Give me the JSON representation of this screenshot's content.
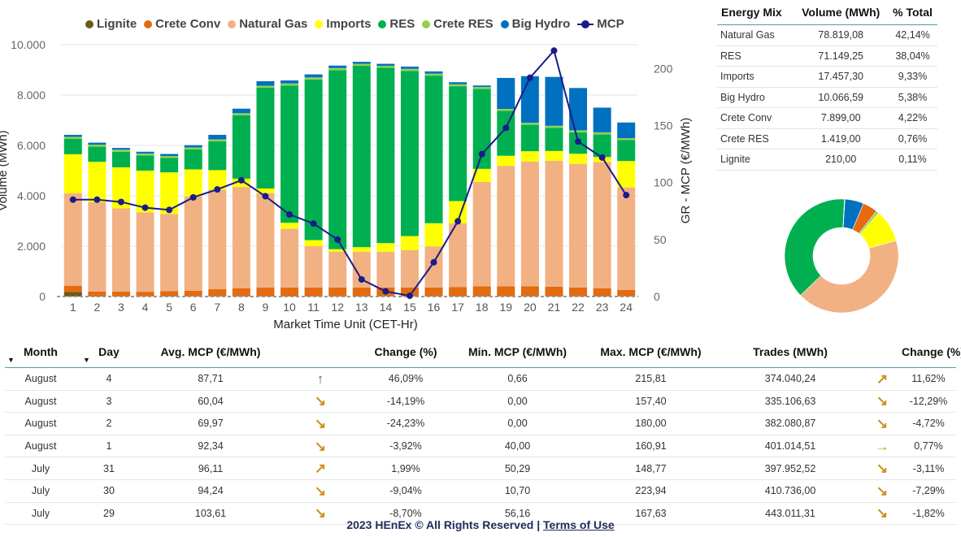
{
  "legend": [
    {
      "label": "Lignite",
      "color": "#6b5b16"
    },
    {
      "label": "Crete Conv",
      "color": "#e46b10"
    },
    {
      "label": "Natural Gas",
      "color": "#f1b183"
    },
    {
      "label": "Imports",
      "color": "#ffff00"
    },
    {
      "label": "RES",
      "color": "#00b050"
    },
    {
      "label": "Crete RES",
      "color": "#92d050"
    },
    {
      "label": "Big Hydro",
      "color": "#0070c0"
    },
    {
      "label": "MCP",
      "color": "#1a1c8a"
    }
  ],
  "chart_data": [
    {
      "type": "bar",
      "stacked": true,
      "xlabel": "Market Time Unit (CET-Hr)",
      "ylabel": "Volume (MWh)",
      "y2label": "GR - MCP (€/MWh)",
      "ylim": [
        0,
        10000
      ],
      "y2lim": [
        0,
        221
      ],
      "yticks": [
        "0",
        "2.000",
        "4.000",
        "6.000",
        "8.000",
        "10.000"
      ],
      "y2ticks": [
        "0",
        "50",
        "100",
        "150",
        "200"
      ],
      "categories": [
        "1",
        "2",
        "3",
        "4",
        "5",
        "6",
        "7",
        "8",
        "9",
        "10",
        "11",
        "12",
        "13",
        "14",
        "15",
        "16",
        "17",
        "18",
        "19",
        "20",
        "21",
        "22",
        "23",
        "24"
      ],
      "series": [
        {
          "name": "Lignite",
          "color": "#6b5b16",
          "values": [
            180,
            20,
            10,
            10,
            10,
            10,
            10,
            10,
            10,
            10,
            10,
            10,
            10,
            10,
            10,
            10,
            10,
            10,
            10,
            10,
            10,
            10,
            10,
            10
          ]
        },
        {
          "name": "Crete Conv",
          "color": "#e46b10",
          "values": [
            250,
            180,
            190,
            180,
            200,
            220,
            280,
            320,
            350,
            350,
            350,
            350,
            350,
            350,
            350,
            350,
            370,
            400,
            400,
            400,
            380,
            350,
            320,
            250
          ]
        },
        {
          "name": "Natural Gas",
          "color": "#f1b183",
          "values": [
            3670,
            3550,
            3300,
            3150,
            3070,
            3740,
            3950,
            4020,
            3740,
            2330,
            1640,
            1420,
            1420,
            1420,
            1480,
            1630,
            2530,
            4140,
            4780,
            4950,
            5000,
            4910,
            5010,
            4070
          ]
        },
        {
          "name": "Imports",
          "color": "#ffff00",
          "values": [
            1550,
            1600,
            1630,
            1660,
            1650,
            1080,
            780,
            330,
            190,
            240,
            240,
            100,
            180,
            340,
            560,
            920,
            880,
            520,
            400,
            410,
            390,
            400,
            200,
            1050
          ]
        },
        {
          "name": "RES",
          "color": "#00b050",
          "values": [
            610,
            600,
            620,
            600,
            570,
            790,
            1140,
            2520,
            4000,
            5450,
            6380,
            7110,
            7200,
            6960,
            6560,
            5860,
            4560,
            3170,
            1780,
            1050,
            920,
            850,
            900,
            830
          ]
        },
        {
          "name": "Crete RES",
          "color": "#92d050",
          "values": [
            80,
            80,
            80,
            80,
            80,
            80,
            80,
            80,
            80,
            80,
            80,
            80,
            80,
            80,
            80,
            80,
            80,
            80,
            80,
            80,
            80,
            80,
            80,
            80
          ]
        },
        {
          "name": "Big Hydro",
          "color": "#0070c0",
          "values": [
            80,
            80,
            70,
            70,
            80,
            90,
            180,
            180,
            180,
            120,
            120,
            100,
            80,
            80,
            90,
            90,
            80,
            60,
            1230,
            1850,
            1940,
            1680,
            980,
            620
          ]
        }
      ]
    },
    {
      "type": "line",
      "axis": "secondary",
      "name": "MCP",
      "color": "#1a1c8a",
      "x": [
        "1",
        "2",
        "3",
        "4",
        "5",
        "6",
        "7",
        "8",
        "9",
        "10",
        "11",
        "12",
        "13",
        "14",
        "15",
        "16",
        "17",
        "18",
        "19",
        "20",
        "21",
        "22",
        "23",
        "24"
      ],
      "values": [
        85,
        85,
        83,
        78,
        76,
        87,
        94,
        102,
        88,
        72,
        64,
        50,
        15,
        4.5,
        0.66,
        30,
        66,
        125,
        148,
        192,
        215.81,
        136,
        122,
        89
      ]
    },
    {
      "type": "pie",
      "donut": true,
      "categories": [
        "Big Hydro",
        "Crete Conv",
        "Crete RES",
        "Imports",
        "Natural Gas",
        "RES",
        "Lignite"
      ],
      "values": [
        5.38,
        4.22,
        0.76,
        9.33,
        42.14,
        38.04,
        0.11
      ],
      "colors": [
        "#0070c0",
        "#e46b10",
        "#92d050",
        "#ffff00",
        "#f1b183",
        "#00b050",
        "#6b5b16"
      ]
    }
  ],
  "mix_table": {
    "headers": [
      "Energy Mix",
      "Volume (MWh)",
      "% Total"
    ],
    "rows": [
      [
        "Natural Gas",
        "78.819,08",
        "42,14%"
      ],
      [
        "RES",
        "71.149,25",
        "38,04%"
      ],
      [
        "Imports",
        "17.457,30",
        "9,33%"
      ],
      [
        "Big Hydro",
        "10.066,59",
        "5,38%"
      ],
      [
        "Crete Conv",
        "7.899,00",
        "4,22%"
      ],
      [
        "Crete RES",
        "1.419,00",
        "0,76%"
      ],
      [
        "Lignite",
        "210,00",
        "0,11%"
      ]
    ]
  },
  "stats_table": {
    "headers": [
      "Month",
      "Day",
      "Avg. MCP (€/MWh)",
      "",
      "Change (%)",
      "Min. MCP (€/MWh)",
      "Max. MCP (€/MWh)",
      "Trades (MWh)",
      "",
      "Change (%)"
    ],
    "sort_icon": "▼",
    "rows": [
      {
        "month": "August",
        "day": "4",
        "avg": "87,71",
        "avg_icon": "↑",
        "avg_dir": "up",
        "avg_change": "46,09%",
        "min": "0,66",
        "max": "215,81",
        "trades": "374.040,24",
        "tr_icon": "↗",
        "tr_dir": "upright",
        "tr_change": "11,62%"
      },
      {
        "month": "August",
        "day": "3",
        "avg": "60,04",
        "avg_icon": "↘",
        "avg_dir": "down",
        "avg_change": "-14,19%",
        "min": "0,00",
        "max": "157,40",
        "trades": "335.106,63",
        "tr_icon": "↘",
        "tr_dir": "down",
        "tr_change": "-12,29%"
      },
      {
        "month": "August",
        "day": "2",
        "avg": "69,97",
        "avg_icon": "↘",
        "avg_dir": "down",
        "avg_change": "-24,23%",
        "min": "0,00",
        "max": "180,00",
        "trades": "382.080,87",
        "tr_icon": "↘",
        "tr_dir": "down",
        "tr_change": "-4,72%"
      },
      {
        "month": "August",
        "day": "1",
        "avg": "92,34",
        "avg_icon": "↘",
        "avg_dir": "down",
        "avg_change": "-3,92%",
        "min": "40,00",
        "max": "160,91",
        "trades": "401.014,51",
        "tr_icon": "→",
        "tr_dir": "right",
        "tr_change": "0,77%"
      },
      {
        "month": "July",
        "day": "31",
        "avg": "96,11",
        "avg_icon": "↗",
        "avg_dir": "upright",
        "avg_change": "1,99%",
        "min": "50,29",
        "max": "148,77",
        "trades": "397.952,52",
        "tr_icon": "↘",
        "tr_dir": "down",
        "tr_change": "-3,11%"
      },
      {
        "month": "July",
        "day": "30",
        "avg": "94,24",
        "avg_icon": "↘",
        "avg_dir": "down",
        "avg_change": "-9,04%",
        "min": "10,70",
        "max": "223,94",
        "trades": "410.736,00",
        "tr_icon": "↘",
        "tr_dir": "down",
        "tr_change": "-7,29%"
      },
      {
        "month": "July",
        "day": "29",
        "avg": "103,61",
        "avg_icon": "↘",
        "avg_dir": "down",
        "avg_change": "-8,70%",
        "min": "56,16",
        "max": "167,63",
        "trades": "443.011,31",
        "tr_icon": "↘",
        "tr_dir": "down",
        "tr_change": "-1,82%"
      }
    ]
  },
  "footer": {
    "text": "2023 HEnEx © All Rights Reserved |",
    "link": "Terms of Use"
  }
}
